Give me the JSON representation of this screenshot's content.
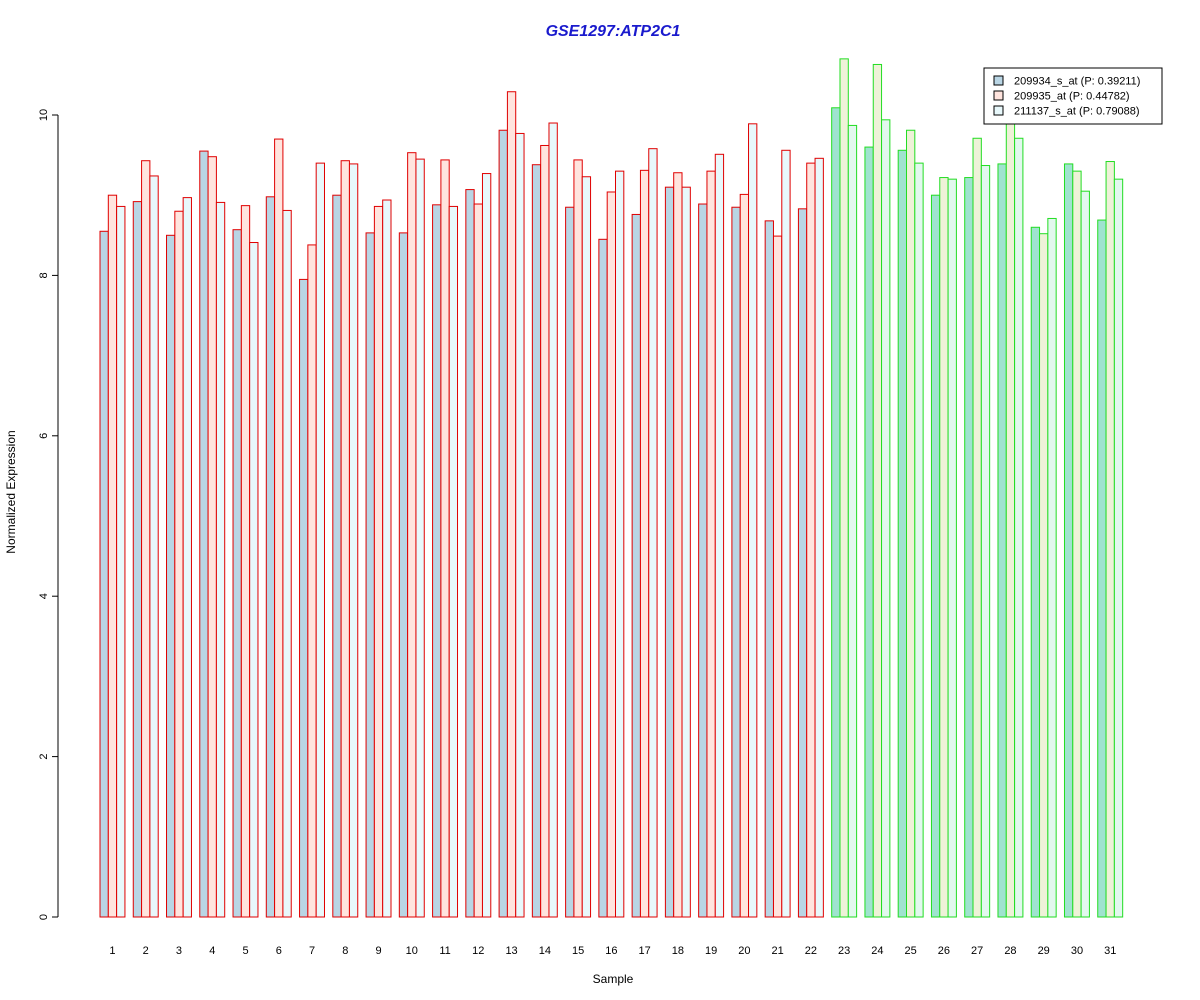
{
  "chart_data": {
    "type": "bar",
    "title": "GSE1297:ATP2C1",
    "title_color": "#1a1acd",
    "xlabel": "Sample",
    "ylabel": "Normalized Expression",
    "ylim": [
      0,
      10.7
    ],
    "yticks": [
      0,
      2,
      4,
      6,
      8,
      10
    ],
    "grid": false,
    "legend_position": "top-right",
    "categories": [
      "1",
      "2",
      "3",
      "4",
      "5",
      "6",
      "7",
      "8",
      "9",
      "10",
      "11",
      "12",
      "13",
      "14",
      "15",
      "16",
      "17",
      "18",
      "19",
      "20",
      "21",
      "22",
      "23",
      "24",
      "25",
      "26",
      "27",
      "28",
      "29",
      "30",
      "31"
    ],
    "group_colors": {
      "group1": "#e00000",
      "group2": "#22dd22",
      "group1_samples": 22
    },
    "series": [
      {
        "name": "209934_s_at (P: 0.39211)",
        "fill": "#b9d5e4",
        "fill_group2": "#9fe3cf",
        "values": [
          8.55,
          8.92,
          8.5,
          9.55,
          8.57,
          8.98,
          7.95,
          9.0,
          8.53,
          8.53,
          8.88,
          9.07,
          9.81,
          9.38,
          8.85,
          8.45,
          8.76,
          9.1,
          8.89,
          8.85,
          8.68,
          8.83,
          10.09,
          9.6,
          9.56,
          9.0,
          9.22,
          9.39,
          8.6,
          9.39,
          8.69
        ]
      },
      {
        "name": "209935_at (P: 0.44782)",
        "fill": "#ffe4de",
        "fill_group2": "#eef2d8",
        "values": [
          9.0,
          9.43,
          8.8,
          9.48,
          8.87,
          9.7,
          8.38,
          9.43,
          8.86,
          9.53,
          9.44,
          8.89,
          10.29,
          9.62,
          9.44,
          9.04,
          9.31,
          9.28,
          9.3,
          9.01,
          8.49,
          9.4,
          10.7,
          10.63,
          9.81,
          9.22,
          9.71,
          9.97,
          8.52,
          9.3,
          9.42
        ]
      },
      {
        "name": "211137_s_at (P: 0.79088)",
        "fill": "#e8f8fb",
        "fill_group2": "#e2f8ee",
        "values": [
          8.86,
          9.24,
          8.97,
          8.91,
          8.41,
          8.81,
          9.4,
          9.39,
          8.94,
          9.45,
          8.86,
          9.27,
          9.77,
          9.9,
          9.23,
          9.3,
          9.58,
          9.1,
          9.51,
          9.89,
          9.56,
          9.46,
          9.87,
          9.94,
          9.4,
          9.2,
          9.37,
          9.71,
          8.71,
          9.05,
          9.2
        ]
      }
    ]
  }
}
